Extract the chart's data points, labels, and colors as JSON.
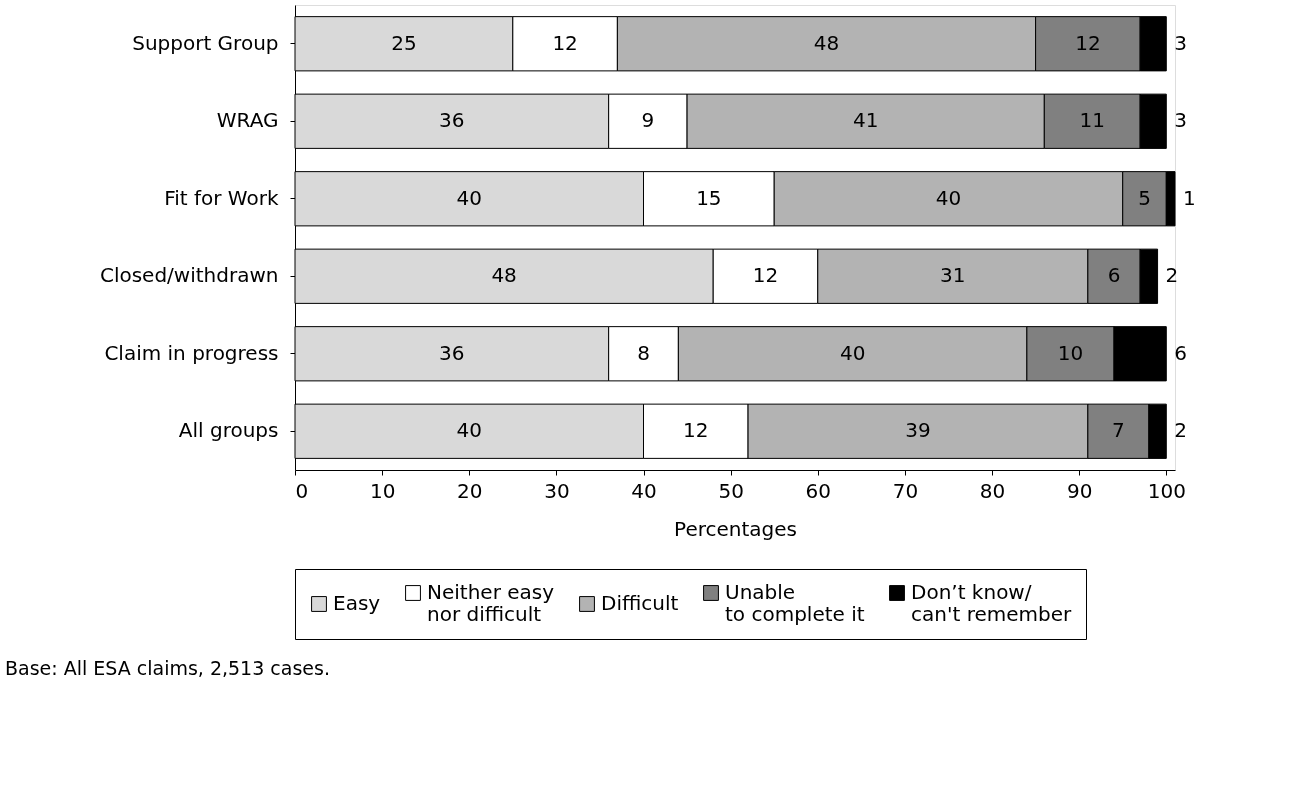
{
  "chart_data": {
    "type": "bar",
    "orientation": "horizontal",
    "stacked": true,
    "data_labels": true,
    "grid": false,
    "legend": "bottom",
    "categories": [
      "Support Group",
      "WRAG",
      "Fit for Work",
      "Closed/withdrawn",
      "Claim in progress",
      "All groups"
    ],
    "xlabel": "Percentages",
    "xlim": [
      0,
      101
    ],
    "xticks": [
      0,
      10,
      20,
      30,
      40,
      50,
      60,
      70,
      80,
      90,
      100
    ],
    "series": [
      {
        "name": "Easy",
        "color": "#d9d9d9",
        "values": [
          25,
          36,
          40,
          48,
          36,
          40
        ]
      },
      {
        "name": "Neither easy\nnor difficult",
        "color": "#ffffff",
        "values": [
          12,
          9,
          15,
          12,
          8,
          12
        ]
      },
      {
        "name": "Difficult",
        "color": "#b3b3b3",
        "values": [
          48,
          41,
          40,
          31,
          40,
          39
        ]
      },
      {
        "name": "Unable\nto complete it",
        "color": "#808080",
        "values": [
          12,
          11,
          5,
          6,
          10,
          7
        ]
      },
      {
        "name": "Don’t know/\ncan't remember",
        "color": "#000000",
        "values": [
          3,
          3,
          1,
          2,
          6,
          2
        ]
      }
    ],
    "annotations": [
      "Base: All ESA claims, 2,513 cases."
    ]
  }
}
